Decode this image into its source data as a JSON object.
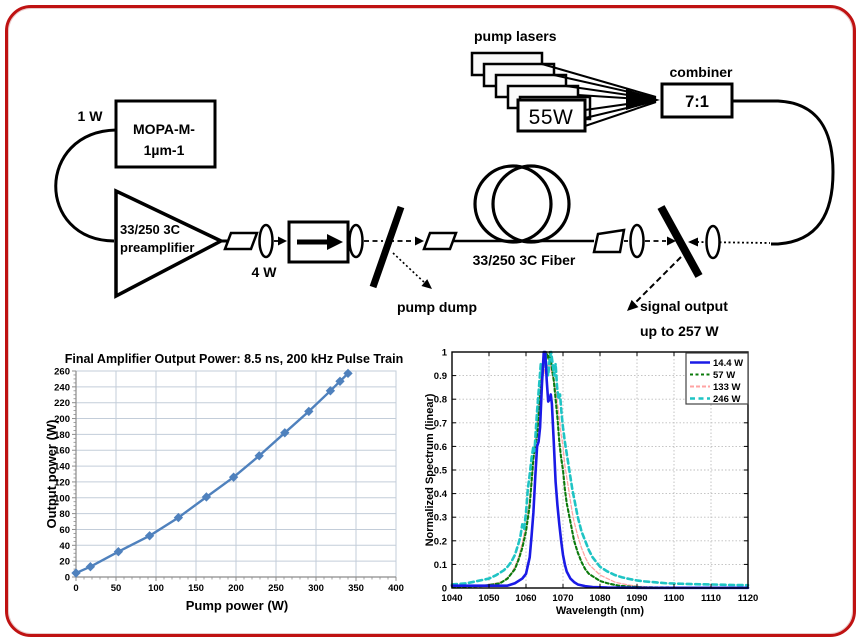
{
  "schematic": {
    "seed_power": "1 W",
    "mopa_line1": "MOPA-M-",
    "mopa_line2": "1µm-1",
    "preamp_line1": "33/250 3C",
    "preamp_line2": "preamplifier",
    "preamp_output": "4 W",
    "pump_lasers": "pump lasers",
    "pump_box": "55W",
    "combiner": "combiner",
    "combiner_ratio": "7:1",
    "pump_dump": "pump dump",
    "fiber_label": "33/250 3C Fiber",
    "signal_output": "signal output",
    "signal_power": "up to 257 W"
  },
  "colors": {
    "frame_border": "#bf1212",
    "ink": "#000000",
    "chart1_line": "#4f81bd",
    "chart1_grid": "#c3cdd9",
    "chart1_axis": "#8c8c8c",
    "chart2_grid": "#bdbdbd",
    "chart2_frame": "#000000",
    "legend_border": "#444444"
  },
  "chart_data": [
    {
      "type": "line",
      "title": "Final Amplifier Output Power: 8.5 ns, 200 kHz Pulse Train",
      "xlabel": "Pump power (W)",
      "ylabel": "Output power (W)",
      "xlim": [
        0,
        400
      ],
      "ylim": [
        0,
        260
      ],
      "xticks": [
        0,
        50,
        100,
        150,
        200,
        250,
        300,
        350,
        400
      ],
      "yticks": [
        0,
        20,
        40,
        60,
        80,
        100,
        120,
        140,
        160,
        180,
        200,
        220,
        240,
        260
      ],
      "x_minor_step": 10,
      "y_minor_step": 5,
      "grid": true,
      "legend": false,
      "series": [
        {
          "name": "Output power",
          "color": "#4f81bd",
          "marker": "diamond",
          "x": [
            0,
            18,
            53,
            92,
            128,
            163,
            197,
            229,
            261,
            291,
            318,
            330,
            340
          ],
          "y": [
            5,
            13,
            32,
            52,
            75,
            101,
            126,
            153,
            182,
            209,
            235,
            247,
            257
          ]
        }
      ]
    },
    {
      "type": "line",
      "title": "",
      "xlabel": "Wavelength (nm)",
      "ylabel": "Normalized Spectrum (linear)",
      "xlim": [
        1040,
        1120
      ],
      "ylim": [
        0,
        1
      ],
      "xticks": [
        1040,
        1050,
        1060,
        1070,
        1080,
        1090,
        1100,
        1110,
        1120
      ],
      "yticks": [
        0,
        0.1,
        0.2,
        0.3,
        0.4,
        0.5,
        0.6,
        0.7,
        0.8,
        0.9,
        1
      ],
      "grid": "dotted",
      "legend_position": "top-right",
      "draw_order": [
        2,
        1,
        3,
        0
      ],
      "series": [
        {
          "name": "14.4 W",
          "color": "#1a1ae6",
          "dash": "",
          "width": 2.6,
          "points": [
            [
              1040,
              0.01
            ],
            [
              1050,
              0.01
            ],
            [
              1055,
              0.01
            ],
            [
              1057,
              0.02
            ],
            [
              1059,
              0.04
            ],
            [
              1060,
              0.06
            ],
            [
              1061,
              0.13
            ],
            [
              1061.5,
              0.22
            ],
            [
              1062,
              0.32
            ],
            [
              1062.5,
              0.47
            ],
            [
              1063,
              0.6
            ],
            [
              1063.4,
              0.62
            ],
            [
              1063.8,
              0.68
            ],
            [
              1064.3,
              0.86
            ],
            [
              1064.8,
              1.0
            ],
            [
              1065.2,
              1.0
            ],
            [
              1065.6,
              0.88
            ],
            [
              1066,
              0.79
            ],
            [
              1066.4,
              0.8
            ],
            [
              1066.7,
              0.82
            ],
            [
              1067,
              0.78
            ],
            [
              1067.5,
              0.62
            ],
            [
              1068,
              0.45
            ],
            [
              1068.5,
              0.35
            ],
            [
              1069,
              0.27
            ],
            [
              1069.5,
              0.2
            ],
            [
              1070,
              0.14
            ],
            [
              1070.5,
              0.1
            ],
            [
              1071,
              0.07
            ],
            [
              1072,
              0.04
            ],
            [
              1073,
              0.025
            ],
            [
              1074,
              0.015
            ],
            [
              1076,
              0.008
            ],
            [
              1078,
              0.004
            ],
            [
              1082,
              0.002
            ],
            [
              1090,
              0.001
            ],
            [
              1100,
              0.001
            ],
            [
              1120,
              0.001
            ]
          ]
        },
        {
          "name": "57 W",
          "color": "#0b7a0b",
          "dash": "3 2.5",
          "width": 2.1,
          "points": [
            [
              1040,
              0.005
            ],
            [
              1048,
              0.008
            ],
            [
              1051,
              0.015
            ],
            [
              1053,
              0.02
            ],
            [
              1055,
              0.04
            ],
            [
              1057,
              0.08
            ],
            [
              1058,
              0.12
            ],
            [
              1059,
              0.17
            ],
            [
              1060,
              0.24
            ],
            [
              1061,
              0.35
            ],
            [
              1061.5,
              0.45
            ],
            [
              1062,
              0.55
            ],
            [
              1062.5,
              0.6
            ],
            [
              1063,
              0.65
            ],
            [
              1063.5,
              0.75
            ],
            [
              1064,
              0.85
            ],
            [
              1064.5,
              0.93
            ],
            [
              1065,
              0.97
            ],
            [
              1065.5,
              1.0
            ],
            [
              1066,
              0.97
            ],
            [
              1066.5,
              1.0
            ],
            [
              1067,
              0.93
            ],
            [
              1067.5,
              0.88
            ],
            [
              1068,
              0.8
            ],
            [
              1068.5,
              0.72
            ],
            [
              1069,
              0.62
            ],
            [
              1069.5,
              0.55
            ],
            [
              1070,
              0.5
            ],
            [
              1070.5,
              0.42
            ],
            [
              1071,
              0.36
            ],
            [
              1071.5,
              0.32
            ],
            [
              1072,
              0.28
            ],
            [
              1073,
              0.2
            ],
            [
              1074,
              0.15
            ],
            [
              1075,
              0.11
            ],
            [
              1076,
              0.08
            ],
            [
              1077,
              0.06
            ],
            [
              1078,
              0.05
            ],
            [
              1080,
              0.03
            ],
            [
              1082,
              0.02
            ],
            [
              1085,
              0.01
            ],
            [
              1088,
              0.006
            ],
            [
              1092,
              0.003
            ],
            [
              1100,
              0.002
            ],
            [
              1110,
              0.001
            ],
            [
              1120,
              0.001
            ]
          ]
        },
        {
          "name": "133 W",
          "color": "#ffa3a3",
          "dash": "4 2",
          "width": 1.3,
          "points": [
            [
              1040,
              0.005
            ],
            [
              1048,
              0.01
            ],
            [
              1052,
              0.02
            ],
            [
              1054,
              0.03
            ],
            [
              1056,
              0.06
            ],
            [
              1057,
              0.09
            ],
            [
              1058,
              0.13
            ],
            [
              1059,
              0.19
            ],
            [
              1060,
              0.27
            ],
            [
              1061,
              0.38
            ],
            [
              1062,
              0.52
            ],
            [
              1062.5,
              0.62
            ],
            [
              1063,
              0.7
            ],
            [
              1063.5,
              0.8
            ],
            [
              1064,
              0.88
            ],
            [
              1064.3,
              0.92
            ],
            [
              1064.8,
              0.9
            ],
            [
              1065.2,
              0.95
            ],
            [
              1065.8,
              0.93
            ],
            [
              1066.3,
              0.96
            ],
            [
              1066.8,
              0.92
            ],
            [
              1067.5,
              0.88
            ],
            [
              1068,
              0.84
            ],
            [
              1068.5,
              0.78
            ],
            [
              1069,
              0.72
            ],
            [
              1069.5,
              0.65
            ],
            [
              1070,
              0.6
            ],
            [
              1070.5,
              0.52
            ],
            [
              1071,
              0.47
            ],
            [
              1071.5,
              0.42
            ],
            [
              1072,
              0.37
            ],
            [
              1072.5,
              0.32
            ],
            [
              1073,
              0.28
            ],
            [
              1074,
              0.22
            ],
            [
              1075,
              0.17
            ],
            [
              1076,
              0.13
            ],
            [
              1077,
              0.1
            ],
            [
              1078,
              0.085
            ],
            [
              1079,
              0.07
            ],
            [
              1080,
              0.055
            ],
            [
              1082,
              0.04
            ],
            [
              1084,
              0.025
            ],
            [
              1086,
              0.018
            ],
            [
              1088,
              0.012
            ],
            [
              1090,
              0.008
            ],
            [
              1094,
              0.004
            ],
            [
              1098,
              0.002
            ],
            [
              1105,
              0.001
            ],
            [
              1120,
              0.001
            ]
          ]
        },
        {
          "name": "246 W",
          "color": "#1fc4c4",
          "dash": "5 3.5",
          "width": 2.6,
          "points": [
            [
              1040,
              0.015
            ],
            [
              1044,
              0.02
            ],
            [
              1047,
              0.03
            ],
            [
              1050,
              0.04
            ],
            [
              1052,
              0.055
            ],
            [
              1054,
              0.075
            ],
            [
              1055,
              0.09
            ],
            [
              1056,
              0.11
            ],
            [
              1057,
              0.14
            ],
            [
              1058,
              0.19
            ],
            [
              1058.5,
              0.22
            ],
            [
              1059,
              0.27
            ],
            [
              1059.5,
              0.25
            ],
            [
              1060,
              0.32
            ],
            [
              1060.5,
              0.42
            ],
            [
              1061,
              0.48
            ],
            [
              1061.5,
              0.55
            ],
            [
              1062,
              0.6
            ],
            [
              1062.3,
              0.58
            ],
            [
              1062.7,
              0.68
            ],
            [
              1063,
              0.75
            ],
            [
              1063.5,
              0.85
            ],
            [
              1064,
              0.95
            ],
            [
              1064.4,
              0.9
            ],
            [
              1064.8,
              0.97
            ],
            [
              1065.2,
              1.0
            ],
            [
              1065.6,
              0.93
            ],
            [
              1066,
              0.9
            ],
            [
              1066.4,
              0.97
            ],
            [
              1066.8,
              1.0
            ],
            [
              1067.2,
              0.95
            ],
            [
              1067.6,
              0.9
            ],
            [
              1068,
              0.95
            ],
            [
              1068.4,
              0.85
            ],
            [
              1068.8,
              0.8
            ],
            [
              1069.2,
              0.82
            ],
            [
              1069.6,
              0.74
            ],
            [
              1070,
              0.68
            ],
            [
              1070.5,
              0.62
            ],
            [
              1071,
              0.57
            ],
            [
              1071.5,
              0.52
            ],
            [
              1072,
              0.47
            ],
            [
              1072.5,
              0.42
            ],
            [
              1073,
              0.38
            ],
            [
              1073.5,
              0.34
            ],
            [
              1074,
              0.3
            ],
            [
              1074.5,
              0.27
            ],
            [
              1075,
              0.24
            ],
            [
              1076,
              0.2
            ],
            [
              1077,
              0.16
            ],
            [
              1078,
              0.13
            ],
            [
              1079,
              0.11
            ],
            [
              1080,
              0.09
            ],
            [
              1081,
              0.08
            ],
            [
              1082,
              0.07
            ],
            [
              1084,
              0.055
            ],
            [
              1086,
              0.045
            ],
            [
              1088,
              0.038
            ],
            [
              1090,
              0.032
            ],
            [
              1092,
              0.028
            ],
            [
              1095,
              0.024
            ],
            [
              1098,
              0.02
            ],
            [
              1102,
              0.018
            ],
            [
              1106,
              0.016
            ],
            [
              1110,
              0.015
            ],
            [
              1115,
              0.013
            ],
            [
              1120,
              0.012
            ]
          ]
        }
      ]
    }
  ]
}
